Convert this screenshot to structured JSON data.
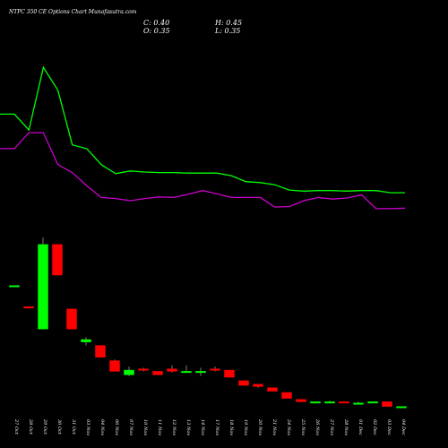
{
  "header": {
    "title": "NTPC 350  CE Options Chart Munafasutra.com",
    "close_label": "C: 0.40",
    "open_label": "O: 0.35",
    "high_label": "H: 0.45",
    "low_label": "L: 0.35"
  },
  "colors": {
    "background": "#000000",
    "upper_line": "#00ff00",
    "lower_line": "#cc00cc",
    "up_candle": "#00ff00",
    "down_candle": "#ff0000",
    "wick": "#999999"
  },
  "chart_data": [
    {
      "type": "line",
      "title": "",
      "series": [
        {
          "values": [
            1.9,
            1.9,
            1.6,
            2.78,
            2.35,
            1.32,
            1.25,
            0.95,
            0.78,
            0.83,
            0.81,
            0.8,
            0.8,
            0.79,
            0.79,
            0.79,
            0.74,
            0.63,
            0.61,
            0.57,
            0.47,
            0.45,
            0.46,
            0.46,
            0.45,
            0.46,
            0.46,
            0.42,
            0.42
          ]
        },
        {
          "values": [
            1.25,
            1.25,
            1.55,
            1.55,
            0.95,
            0.8,
            0.55,
            0.33,
            0.31,
            0.27,
            0.31,
            0.34,
            0.33,
            0.39,
            0.46,
            0.4,
            0.33,
            0.33,
            0.33,
            0.15,
            0.16,
            0.27,
            0.33,
            0.3,
            0.32,
            0.38,
            0.12,
            0.12,
            0.13
          ]
        }
      ]
    },
    {
      "type": "candlestick",
      "categories": [
        "27 Oct",
        "28 Oct",
        "29 Oct",
        "30 Oct",
        "31 Oct",
        "03 Nov",
        "04 Nov",
        "06 Nov",
        "07 Nov",
        "10 Nov",
        "11 Nov",
        "12 Nov",
        "13 Nov",
        "14 Nov",
        "17 Nov",
        "18 Nov",
        "19 Nov",
        "20 Nov",
        "21 Nov",
        "24 Nov",
        "25 Nov",
        "26 Nov",
        "27 Nov",
        "28 Nov",
        "01 Dec",
        "02 Dec",
        "03 Dec",
        "04 Dec"
      ],
      "ohlc": [
        [
          9.7,
          9.7,
          9.7,
          9.7
        ],
        [
          7.9,
          7.9,
          7.8,
          7.8
        ],
        [
          6.0,
          13.8,
          6.0,
          13.2
        ],
        [
          13.2,
          13.2,
          10.6,
          10.6
        ],
        [
          7.7,
          7.7,
          6.0,
          6.0
        ],
        [
          4.9,
          5.3,
          4.6,
          5.1
        ],
        [
          4.6,
          4.6,
          3.6,
          3.6
        ],
        [
          3.3,
          3.4,
          2.4,
          2.4
        ],
        [
          2.1,
          2.8,
          2.0,
          2.5
        ],
        [
          2.6,
          2.7,
          2.4,
          2.5
        ],
        [
          2.4,
          2.4,
          2.1,
          2.1
        ],
        [
          2.6,
          2.9,
          2.3,
          2.4
        ],
        [
          2.4,
          2.9,
          2.3,
          2.4
        ],
        [
          2.4,
          2.7,
          2.0,
          2.4
        ],
        [
          2.6,
          2.8,
          2.4,
          2.5
        ],
        [
          2.5,
          2.5,
          1.9,
          1.9
        ],
        [
          1.6,
          1.6,
          1.2,
          1.2
        ],
        [
          1.3,
          1.3,
          1.0,
          1.1
        ],
        [
          1.0,
          1.0,
          0.7,
          0.7
        ],
        [
          0.6,
          0.6,
          0.1,
          0.1
        ],
        [
          0.0,
          0.0,
          -0.2,
          -0.2
        ],
        [
          -0.3,
          -0.2,
          -0.3,
          -0.2
        ],
        [
          -0.2,
          -0.1,
          -0.3,
          -0.2
        ],
        [
          -0.2,
          -0.2,
          -0.3,
          -0.3
        ],
        [
          -0.3,
          -0.2,
          -0.4,
          -0.3
        ],
        [
          -0.3,
          -0.2,
          -0.3,
          -0.2
        ],
        [
          -0.2,
          -0.2,
          -0.6,
          -0.6
        ],
        [
          -0.7,
          -0.6,
          -0.7,
          -0.6
        ]
      ]
    }
  ]
}
